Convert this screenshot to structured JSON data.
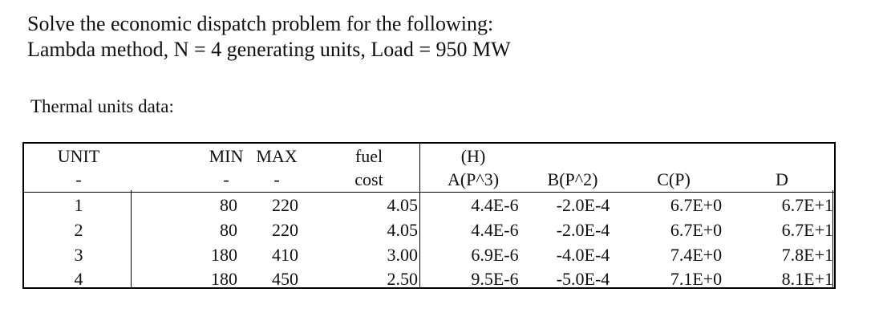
{
  "problem": {
    "line1": "Solve the economic dispatch problem for the following:",
    "line2": "Lambda method, N = 4 generating units, Load = 950 MW",
    "subheading": "Thermal units data:"
  },
  "table": {
    "header_row1": {
      "unit": "UNIT",
      "min": "MIN",
      "max": "MAX",
      "fuel": "fuel",
      "h": "(H)"
    },
    "header_row2": {
      "unit": "-",
      "min": "-",
      "max": "-",
      "fuel": "cost",
      "a": "A(P^3)",
      "b": "B(P^2)",
      "c": "C(P)",
      "d": "D"
    },
    "rows": [
      {
        "unit": "1",
        "min": "80",
        "max": "220",
        "fuel": "4.05",
        "a": "4.4E-6",
        "b": "-2.0E-4",
        "c": "6.7E+0",
        "d": "6.7E+1"
      },
      {
        "unit": "2",
        "min": "80",
        "max": "220",
        "fuel": "4.05",
        "a": "4.4E-6",
        "b": "-2.0E-4",
        "c": "6.7E+0",
        "d": "6.7E+1"
      },
      {
        "unit": "3",
        "min": "180",
        "max": "410",
        "fuel": "3.00",
        "a": "6.9E-6",
        "b": "-4.0E-4",
        "c": "7.4E+0",
        "d": "7.8E+1"
      },
      {
        "unit": "4",
        "min": "180",
        "max": "450",
        "fuel": "2.50",
        "a": "9.5E-6",
        "b": "-5.0E-4",
        "c": "7.1E+0",
        "d": "8.1E+1"
      }
    ]
  }
}
